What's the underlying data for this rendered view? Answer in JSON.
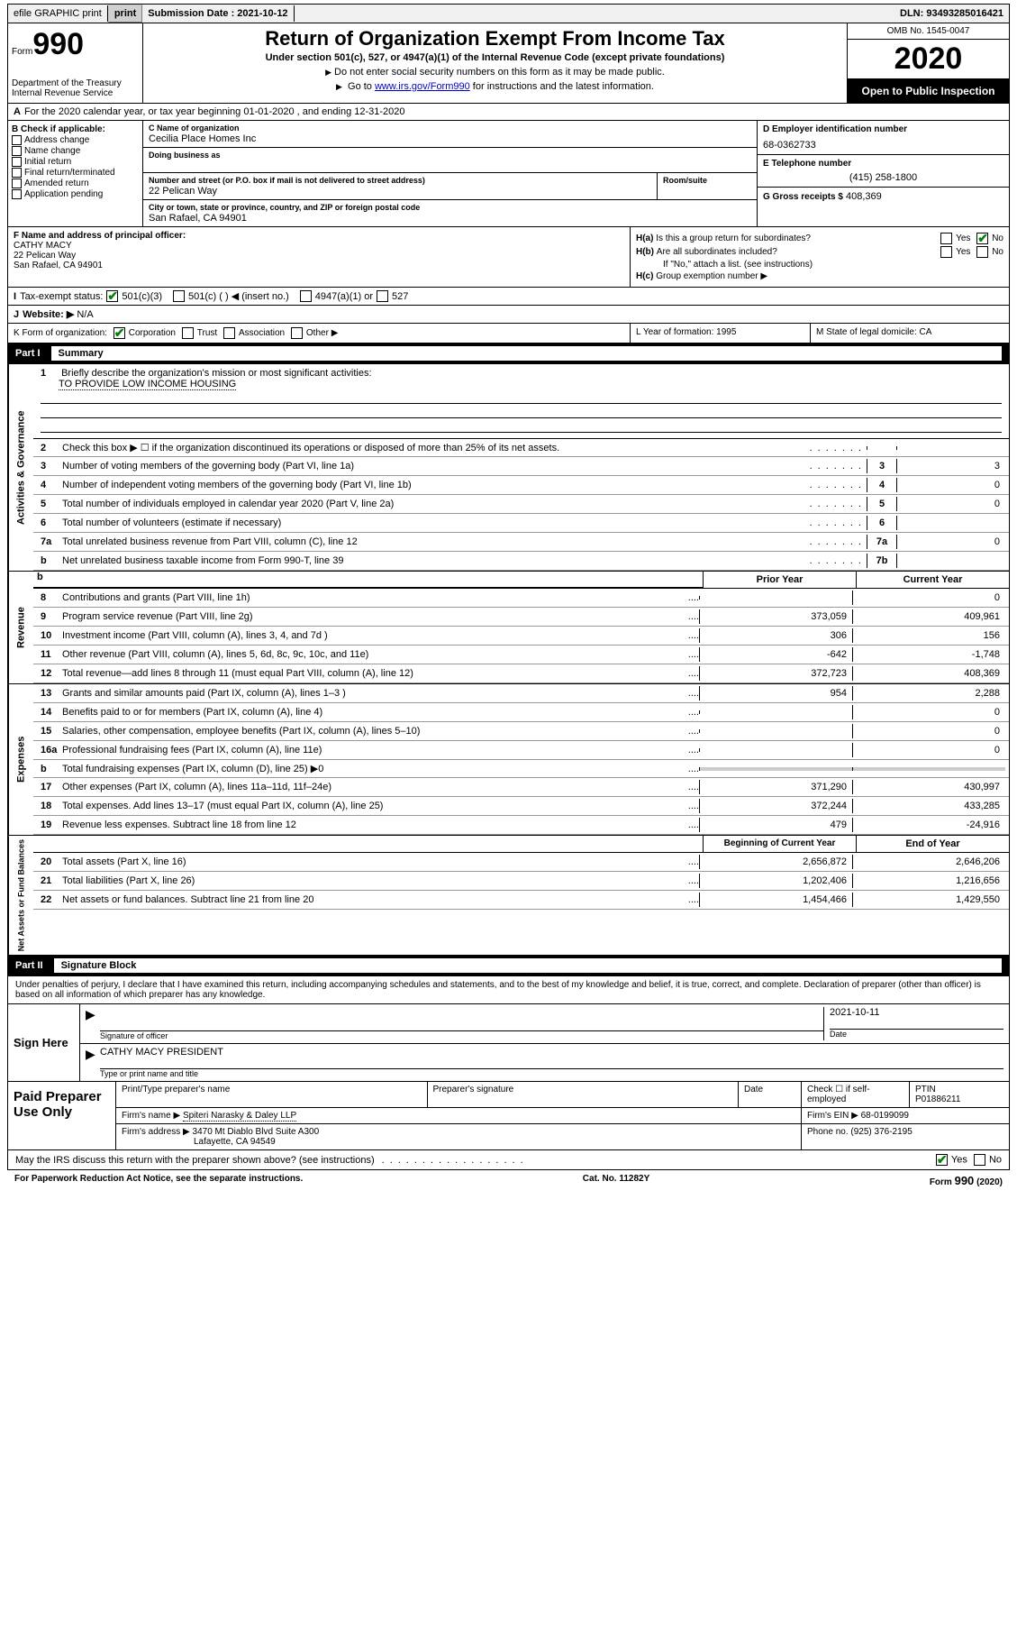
{
  "top": {
    "efile": "efile GRAPHIC print",
    "submission_label": "Submission Date : 2021-10-12",
    "dln": "DLN: 93493285016421"
  },
  "header": {
    "form_word": "Form",
    "form_num": "990",
    "dept": "Department of the Treasury\nInternal Revenue Service",
    "title": "Return of Organization Exempt From Income Tax",
    "subtitle": "Under section 501(c), 527, or 4947(a)(1) of the Internal Revenue Code (except private foundations)",
    "inst1": "Do not enter social security numbers on this form as it may be made public.",
    "inst2_pre": "Go to ",
    "inst2_link": "www.irs.gov/Form990",
    "inst2_post": " for instructions and the latest information.",
    "omb": "OMB No. 1545-0047",
    "year": "2020",
    "public": "Open to Public Inspection"
  },
  "line_a": "For the 2020 calendar year, or tax year beginning 01-01-2020    , and ending 12-31-2020",
  "check_b": {
    "label": "Check if applicable:",
    "opts": [
      "Address change",
      "Name change",
      "Initial return",
      "Final return/terminated",
      "Amended return",
      "Application pending"
    ]
  },
  "entity": {
    "name_label": "C Name of organization",
    "name": "Cecilia Place Homes Inc",
    "dba_label": "Doing business as",
    "street_label": "Number and street (or P.O. box if mail is not delivered to street address)",
    "street": "22 Pelican Way",
    "room_label": "Room/suite",
    "city_label": "City or town, state or province, country, and ZIP or foreign postal code",
    "city": "San Rafael, CA  94901"
  },
  "right_col": {
    "ein_label": "D Employer identification number",
    "ein": "68-0362733",
    "phone_label": "E Telephone number",
    "phone": "(415) 258-1800",
    "gross_label": "G Gross receipts $",
    "gross": "408,369"
  },
  "officer": {
    "label": "F  Name and address of principal officer:",
    "name": "CATHY MACY",
    "street": "22 Pelican Way",
    "city": "San Rafael, CA  94901"
  },
  "h_section": {
    "ha": "Is this a group return for subordinates?",
    "hb": "Are all subordinates included?",
    "hb_note": "If \"No,\" attach a list. (see instructions)",
    "hc": "Group exemption number ▶"
  },
  "tax_status": {
    "label": "Tax-exempt status:",
    "opts": [
      "501(c)(3)",
      "501(c) (  ) ◀ (insert no.)",
      "4947(a)(1) or",
      "527"
    ]
  },
  "website": {
    "label": "Website: ▶",
    "val": "N/A"
  },
  "klm": {
    "k": "Form of organization:",
    "k_opts": [
      "Corporation",
      "Trust",
      "Association",
      "Other ▶"
    ],
    "l": "Year of formation: 1995",
    "m": "State of legal domicile: CA"
  },
  "part1": {
    "name": "Part I",
    "title": "Summary"
  },
  "mission": {
    "num": "1",
    "label": "Briefly describe the organization's mission or most significant activities:",
    "text": "TO PROVIDE LOW INCOME HOUSING"
  },
  "gov_lines": [
    {
      "n": "2",
      "d": "Check this box ▶ ☐  if the organization discontinued its operations or disposed of more than 25% of its net assets.",
      "box": "",
      "val": ""
    },
    {
      "n": "3",
      "d": "Number of voting members of the governing body (Part VI, line 1a)",
      "box": "3",
      "val": "3"
    },
    {
      "n": "4",
      "d": "Number of independent voting members of the governing body (Part VI, line 1b)",
      "box": "4",
      "val": "0"
    },
    {
      "n": "5",
      "d": "Total number of individuals employed in calendar year 2020 (Part V, line 2a)",
      "box": "5",
      "val": "0"
    },
    {
      "n": "6",
      "d": "Total number of volunteers (estimate if necessary)",
      "box": "6",
      "val": ""
    },
    {
      "n": "7a",
      "d": "Total unrelated business revenue from Part VIII, column (C), line 12",
      "box": "7a",
      "val": "0"
    },
    {
      "n": "b",
      "d": "Net unrelated business taxable income from Form 990-T, line 39",
      "box": "7b",
      "val": ""
    }
  ],
  "rev_header": {
    "h1": "Prior Year",
    "h2": "Current Year"
  },
  "rev_lines": [
    {
      "n": "8",
      "d": "Contributions and grants (Part VIII, line 1h)",
      "c1": "",
      "c2": "0"
    },
    {
      "n": "9",
      "d": "Program service revenue (Part VIII, line 2g)",
      "c1": "373,059",
      "c2": "409,961"
    },
    {
      "n": "10",
      "d": "Investment income (Part VIII, column (A), lines 3, 4, and 7d )",
      "c1": "306",
      "c2": "156"
    },
    {
      "n": "11",
      "d": "Other revenue (Part VIII, column (A), lines 5, 6d, 8c, 9c, 10c, and 11e)",
      "c1": "-642",
      "c2": "-1,748"
    },
    {
      "n": "12",
      "d": "Total revenue—add lines 8 through 11 (must equal Part VIII, column (A), line 12)",
      "c1": "372,723",
      "c2": "408,369"
    }
  ],
  "exp_lines": [
    {
      "n": "13",
      "d": "Grants and similar amounts paid (Part IX, column (A), lines 1–3 )",
      "c1": "954",
      "c2": "2,288"
    },
    {
      "n": "14",
      "d": "Benefits paid to or for members (Part IX, column (A), line 4)",
      "c1": "",
      "c2": "0"
    },
    {
      "n": "15",
      "d": "Salaries, other compensation, employee benefits (Part IX, column (A), lines 5–10)",
      "c1": "",
      "c2": "0"
    },
    {
      "n": "16a",
      "d": "Professional fundraising fees (Part IX, column (A), line 11e)",
      "c1": "",
      "c2": "0"
    },
    {
      "n": "b",
      "d": "Total fundraising expenses (Part IX, column (D), line 25) ▶0",
      "c1": "shaded",
      "c2": "shaded"
    },
    {
      "n": "17",
      "d": "Other expenses (Part IX, column (A), lines 11a–11d, 11f–24e)",
      "c1": "371,290",
      "c2": "430,997"
    },
    {
      "n": "18",
      "d": "Total expenses. Add lines 13–17 (must equal Part IX, column (A), line 25)",
      "c1": "372,244",
      "c2": "433,285"
    },
    {
      "n": "19",
      "d": "Revenue less expenses. Subtract line 18 from line 12",
      "c1": "479",
      "c2": "-24,916"
    }
  ],
  "net_header": {
    "h1": "Beginning of Current Year",
    "h2": "End of Year"
  },
  "net_lines": [
    {
      "n": "20",
      "d": "Total assets (Part X, line 16)",
      "c1": "2,656,872",
      "c2": "2,646,206"
    },
    {
      "n": "21",
      "d": "Total liabilities (Part X, line 26)",
      "c1": "1,202,406",
      "c2": "1,216,656"
    },
    {
      "n": "22",
      "d": "Net assets or fund balances. Subtract line 21 from line 20",
      "c1": "1,454,466",
      "c2": "1,429,550"
    }
  ],
  "part2": {
    "name": "Part II",
    "title": "Signature Block"
  },
  "perjury": "Under penalties of perjury, I declare that I have examined this return, including accompanying schedules and statements, and to the best of my knowledge and belief, it is true, correct, and complete. Declaration of preparer (other than officer) is based on all information of which preparer has any knowledge.",
  "sign": {
    "here": "Sign Here",
    "sig_label": "Signature of officer",
    "date": "2021-10-11",
    "date_label": "Date",
    "name": "CATHY MACY PRESIDENT",
    "name_label": "Type or print name and title"
  },
  "prep": {
    "label": "Paid Preparer Use Only",
    "h1": "Print/Type preparer's name",
    "h2": "Preparer's signature",
    "h3": "Date",
    "h4_pre": "Check ☐ if self-employed",
    "h5": "PTIN",
    "ptin": "P01886211",
    "firm_label": "Firm's name    ▶",
    "firm": "Spiteri Narasky & Daley LLP",
    "ein_label": "Firm's EIN ▶",
    "ein": "68-0199099",
    "addr_label": "Firm's address ▶",
    "addr1": "3470 Mt Diablo Blvd Suite A300",
    "addr2": "Lafayette, CA  94549",
    "phone_label": "Phone no.",
    "phone": "(925) 376-2195"
  },
  "discuss": "May the IRS discuss this return with the preparer shown above? (see instructions)",
  "footer": {
    "left": "For Paperwork Reduction Act Notice, see the separate instructions.",
    "mid": "Cat. No. 11282Y",
    "right": "Form 990 (2020)"
  },
  "vtabs": {
    "gov": "Activities & Governance",
    "rev": "Revenue",
    "exp": "Expenses",
    "net": "Net Assets or Fund Balances"
  }
}
